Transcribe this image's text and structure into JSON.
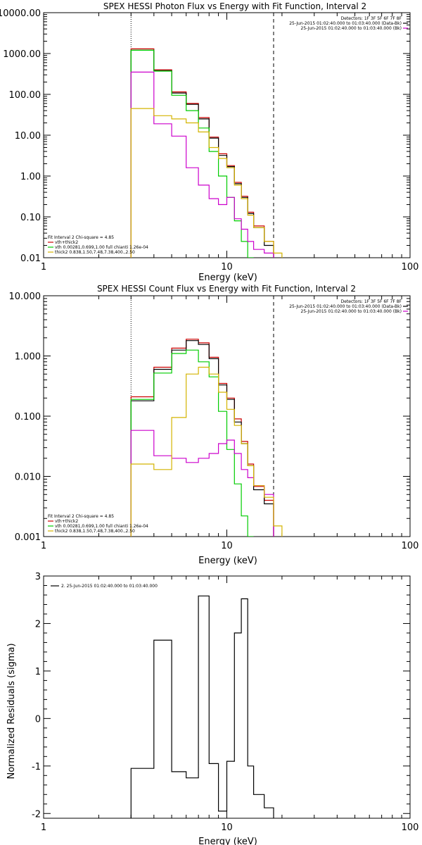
{
  "colors": {
    "data": "#000000",
    "total": "#cc0000",
    "vth": "#00cc00",
    "bpow": "#cc00cc",
    "thick": "#d4b400"
  },
  "chart_data": [
    {
      "type": "line",
      "title": "SPEX HESSI Photon Flux vs Energy with Fit Function, Interval 2",
      "xlabel": "Energy (keV)",
      "ylabel": "",
      "x_scale": "log",
      "y_scale": "log",
      "xlim": [
        1,
        100
      ],
      "ylim": [
        0.01,
        10000
      ],
      "x_ticks": [
        {
          "value": 1,
          "label": "1"
        },
        {
          "value": 10,
          "label": "10"
        },
        {
          "value": 100,
          "label": "100"
        }
      ],
      "y_ticks": [
        {
          "value": 10000,
          "label": "10000.00"
        },
        {
          "value": 1000,
          "label": "1000.00"
        },
        {
          "value": 100,
          "label": "100.00"
        },
        {
          "value": 10,
          "label": "10.00"
        },
        {
          "value": 1,
          "label": "1.00"
        },
        {
          "value": 0.1,
          "label": "0.10"
        },
        {
          "value": 0.01,
          "label": "0.01"
        }
      ],
      "vlines": [
        {
          "x": 3,
          "style": "dotted"
        },
        {
          "x": 18,
          "style": "dashed"
        }
      ],
      "legend_top": [
        {
          "text": "Detectors: 1F 3F 5F 6F 7F 8F",
          "color": ""
        },
        {
          "text": "25-Jun-2015 01:02:40.000 to 01:03:40.000 (Data-Bk)",
          "color": "data"
        },
        {
          "text": "25-Jun-2015 01:02:40.000 to 01:03:40.000 (Bk)",
          "color": "bpow"
        }
      ],
      "legend_bottom": [
        {
          "text": "Fit Interval 2   Chi-square = 4.85",
          "color": ""
        },
        {
          "text": "vth+thick2",
          "color": "total"
        },
        {
          "text": "vth 0.00281,0.699,1.00   full chianti 1.26e-04",
          "color": "vth"
        },
        {
          "text": "thick2 0.838,1.50,7.48,7.38,400.,2.50",
          "color": "thick"
        }
      ],
      "edges": [
        3,
        4,
        5,
        6,
        7,
        8,
        9,
        10,
        11,
        12,
        13,
        14,
        16,
        18,
        20
      ],
      "series": [
        {
          "name": "vth+thick2",
          "color": "total",
          "values": [
            1300,
            400,
            115,
            60,
            27,
            9,
            3.5,
            1.8,
            0.7,
            0.32,
            0.13,
            0.06,
            0.025,
            null
          ]
        },
        {
          "color": "data",
          "values": [
            1200,
            380,
            108,
            57,
            25,
            8.5,
            3.2,
            1.7,
            0.65,
            0.3,
            0.12,
            0.055,
            0.02,
            null
          ]
        },
        {
          "name": "vth",
          "color": "vth",
          "values": [
            1200,
            370,
            95,
            40,
            15,
            4,
            1,
            0.3,
            0.08,
            0.025,
            0.008,
            null,
            null,
            null
          ]
        },
        {
          "color": "bpow",
          "values": [
            350,
            19,
            9.5,
            1.6,
            0.6,
            0.28,
            0.2,
            0.3,
            0.09,
            0.05,
            0.025,
            0.016,
            0.013,
            null
          ]
        },
        {
          "name": "thick2",
          "color": "thick",
          "values": [
            45,
            30,
            25,
            20,
            12,
            5,
            2.7,
            1.6,
            0.6,
            0.28,
            0.11,
            0.055,
            0.025,
            0.013
          ]
        }
      ]
    },
    {
      "type": "line",
      "title": "SPEX HESSI Count Flux vs Energy with Fit Function, Interval 2",
      "xlabel": "Energy (keV)",
      "ylabel": "",
      "x_scale": "log",
      "y_scale": "log",
      "xlim": [
        1,
        100
      ],
      "ylim": [
        0.001,
        10
      ],
      "x_ticks": [
        {
          "value": 1,
          "label": "1"
        },
        {
          "value": 10,
          "label": "10"
        },
        {
          "value": 100,
          "label": "100"
        }
      ],
      "y_ticks": [
        {
          "value": 10,
          "label": "10.000"
        },
        {
          "value": 1,
          "label": "1.000"
        },
        {
          "value": 0.1,
          "label": "0.100"
        },
        {
          "value": 0.01,
          "label": "0.010"
        },
        {
          "value": 0.001,
          "label": "0.001"
        }
      ],
      "vlines": [
        {
          "x": 3,
          "style": "dotted"
        },
        {
          "x": 18,
          "style": "dashed"
        }
      ],
      "legend_top": [
        {
          "text": "Detectors: 1F 3F 5F 6F 7F 8F",
          "color": ""
        },
        {
          "text": "25-Jun-2015 01:02:40.000 to 01:03:40.000 (Data-Bk)",
          "color": "data"
        },
        {
          "text": "25-Jun-2015 01:02:40.000 to 01:03:40.000 (Bk)",
          "color": "bpow"
        }
      ],
      "legend_bottom": [
        {
          "text": "Fit Interval 2   Chi-square = 4.85",
          "color": ""
        },
        {
          "text": "vth+thick2",
          "color": "total"
        },
        {
          "text": "vth 0.00281,0.699,1.00   full chianti 1.26e-04",
          "color": "vth"
        },
        {
          "text": "thick2 0.838,1.50,7.48,7.38,400.,2.50",
          "color": "thick"
        }
      ],
      "edges": [
        3,
        4,
        5,
        6,
        7,
        8,
        9,
        10,
        11,
        12,
        13,
        14,
        16,
        18,
        20
      ],
      "series": [
        {
          "name": "vth+thick2",
          "color": "total",
          "values": [
            0.21,
            0.65,
            1.35,
            1.9,
            1.65,
            0.95,
            0.35,
            0.2,
            0.09,
            0.038,
            0.016,
            0.0068,
            0.004,
            null
          ]
        },
        {
          "color": "data",
          "values": [
            0.18,
            0.6,
            1.25,
            1.8,
            1.55,
            0.9,
            0.33,
            0.19,
            0.08,
            0.035,
            0.015,
            0.006,
            0.0035,
            null
          ]
        },
        {
          "name": "vth",
          "color": "vth",
          "values": [
            0.19,
            0.52,
            1.1,
            1.25,
            0.8,
            0.45,
            0.12,
            0.028,
            0.0075,
            0.0022,
            0.001,
            null,
            null,
            null
          ]
        },
        {
          "color": "bpow",
          "values": [
            0.058,
            0.022,
            0.02,
            0.017,
            0.02,
            0.024,
            0.035,
            0.04,
            0.024,
            0.013,
            0.0095,
            0.007,
            0.005,
            null
          ]
        },
        {
          "name": "thick2",
          "color": "thick",
          "values": [
            0.016,
            0.013,
            0.095,
            0.5,
            0.65,
            0.5,
            0.25,
            0.13,
            0.07,
            0.035,
            0.015,
            0.007,
            0.0045,
            0.0015
          ]
        }
      ]
    },
    {
      "type": "line",
      "title": "",
      "xlabel": "Energy (keV)",
      "ylabel": "Normalized Residuals (sigma)",
      "x_scale": "log",
      "y_scale": "linear",
      "xlim": [
        1,
        100
      ],
      "ylim": [
        -2.1,
        3.0
      ],
      "x_ticks": [
        {
          "value": 1,
          "label": "1"
        },
        {
          "value": 10,
          "label": "10"
        },
        {
          "value": 100,
          "label": "100"
        }
      ],
      "y_ticks": [
        {
          "value": 3,
          "label": "3"
        },
        {
          "value": 2,
          "label": "2"
        },
        {
          "value": 1,
          "label": "1"
        },
        {
          "value": 0,
          "label": "0"
        },
        {
          "value": -1,
          "label": "-1"
        },
        {
          "value": -2,
          "label": "-2"
        }
      ],
      "legend_top_left": [
        {
          "text": "2. 25-Jun-2015 01:02:40.000 to 01:03:40.000",
          "color": "data"
        }
      ],
      "edges": [
        3,
        4,
        5,
        6,
        7,
        8,
        9,
        10,
        11,
        12,
        13,
        14,
        16,
        18,
        20
      ],
      "series": [
        {
          "color": "data",
          "values": [
            -1.05,
            1.65,
            -1.12,
            -1.25,
            2.58,
            -0.95,
            -1.95,
            -0.9,
            1.8,
            2.52,
            -1.0,
            -1.6,
            -1.88,
            null
          ]
        }
      ]
    }
  ]
}
